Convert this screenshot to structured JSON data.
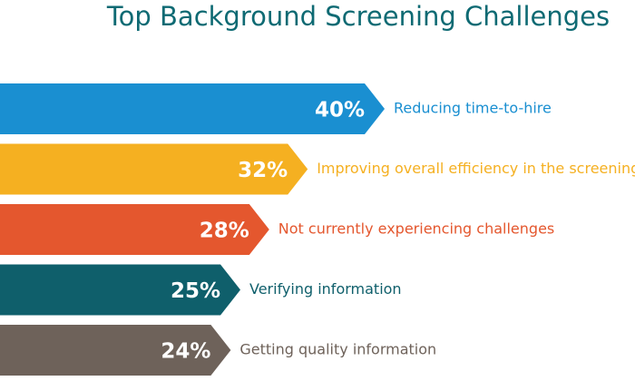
{
  "chart_data": {
    "type": "arrow-bar",
    "title": "Top Background Screening Challenges",
    "categories": [
      "Reducing time-to-hire",
      "Improving overall efficiency in the screening",
      "Not currently experiencing challenges",
      "Verifying information",
      "Getting quality information"
    ],
    "values": [
      40,
      32,
      28,
      25,
      24
    ],
    "value_labels": [
      "40%",
      "32%",
      "28%",
      "25%",
      "24%"
    ],
    "colors": [
      "#1a8fd1",
      "#f5b021",
      "#e4572e",
      "#0f5f6b",
      "#6e625a"
    ]
  }
}
